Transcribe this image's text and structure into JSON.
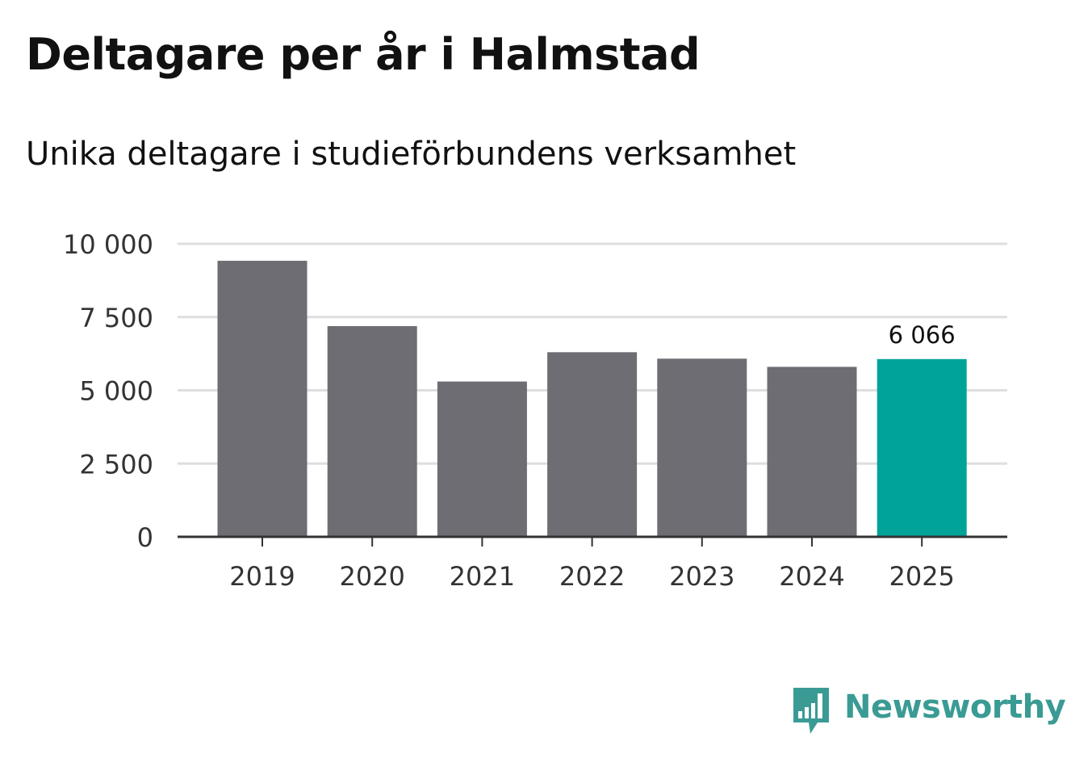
{
  "title": "Deltagare per år i Halmstad",
  "subtitle": "Unika deltagare i studieförbundens verksamhet",
  "brand": {
    "name": "Newsworthy",
    "icon": "newsworthy-chart-bubble-icon",
    "color": "#3a9b94"
  },
  "colors": {
    "bar": "#6e6d73",
    "highlight": "#00a398",
    "grid": "#dedede",
    "axis": "#333333",
    "tick_text": "#333333"
  },
  "chart_data": {
    "type": "bar",
    "categories": [
      "2019",
      "2020",
      "2021",
      "2022",
      "2023",
      "2024",
      "2025"
    ],
    "values": [
      9420,
      7190,
      5300,
      6300,
      6080,
      5800,
      6066
    ],
    "highlight_index": 6,
    "data_labels": [
      {
        "index": 6,
        "text": "6 066"
      }
    ],
    "yticks": [
      0,
      2500,
      5000,
      7500,
      10000
    ],
    "ytick_labels": [
      "0",
      "2 500",
      "5 000",
      "7 500",
      "10 000"
    ],
    "ylim": [
      0,
      10000
    ],
    "grid": true,
    "legend": "none",
    "xlabel": "",
    "ylabel": ""
  }
}
